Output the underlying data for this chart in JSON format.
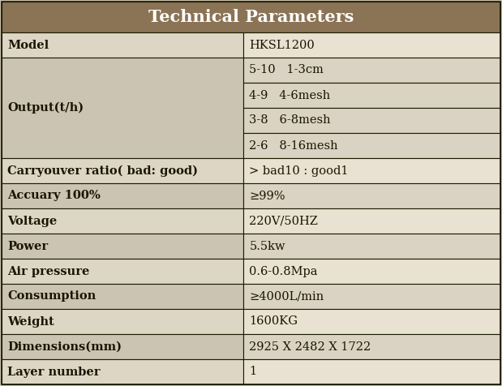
{
  "title": "Technical Parameters",
  "title_bg_color": "#8B7355",
  "title_text_color": "#FFFFFF",
  "header_fontsize": 15,
  "cell_fontsize": 10.5,
  "col_split": 0.485,
  "row_colors": [
    [
      "#DDD5C4",
      "#E8E0D0"
    ],
    [
      "#C8BFB0",
      "#D8D0C0"
    ]
  ],
  "border_color": "#1A1A00",
  "border_lw": 0.8,
  "outer_border_lw": 1.2,
  "text_color": "#1A1500",
  "rows": [
    {
      "label": "Model",
      "value": "HKSL1200",
      "multi": false,
      "span": 1
    },
    {
      "label": "Output(t/h)",
      "value": "",
      "multi": true,
      "sub_values": [
        "5-10   1-3cm",
        "4-9   4-6mesh",
        "3-8   6-8mesh",
        "2-6   8-16mesh"
      ],
      "span": 4
    },
    {
      "label": "Carryouver ratio( bad: good)",
      "value": "> bad10 : good1",
      "multi": false,
      "span": 1
    },
    {
      "label": "Accuary 100%",
      "value": "≥99%",
      "multi": false,
      "span": 1
    },
    {
      "label": "Voltage",
      "value": "220V/50HZ",
      "multi": false,
      "span": 1
    },
    {
      "label": "Power",
      "value": "5.5kw",
      "multi": false,
      "span": 1
    },
    {
      "label": "Air pressure",
      "value": "0.6-0.8Mpa",
      "multi": false,
      "span": 1
    },
    {
      "label": "Consumption",
      "value": "≥4000L/min",
      "multi": false,
      "span": 1
    },
    {
      "label": "Weight",
      "value": "1600KG",
      "multi": false,
      "span": 1
    },
    {
      "label": "Dimensions(mm)",
      "value": "2925 X 2482 X 1722",
      "multi": false,
      "span": 1
    },
    {
      "label": "Layer number",
      "value": "1",
      "multi": false,
      "span": 1
    }
  ],
  "fig_width": 6.19,
  "fig_height": 4.76,
  "dpi": 100
}
